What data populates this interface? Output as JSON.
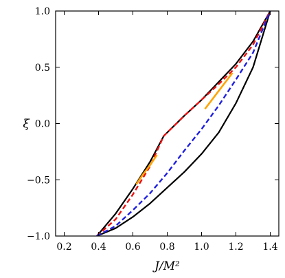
{
  "chart_data": {
    "type": "line",
    "title": "",
    "xlabel": "J/M²",
    "ylabel": "ξ",
    "xlim": [
      0.15,
      1.45
    ],
    "ylim": [
      -1.0,
      1.0
    ],
    "xticks": [
      0.2,
      0.4,
      0.6,
      0.8,
      1.0,
      1.2,
      1.4
    ],
    "yticks": [
      -1.0,
      -0.5,
      0.0,
      0.5,
      1.0
    ],
    "xtick_labels": [
      "0.2",
      "0.4",
      "0.6",
      "0.8",
      "1.0",
      "1.2",
      "1.4"
    ],
    "ytick_labels": [
      "−1.0",
      "−0.5",
      "0.0",
      "0.5",
      "1.0"
    ],
    "grid": false,
    "legend": "none",
    "series": [
      {
        "color": "#000000",
        "dash": "solid",
        "x": [
          0.39,
          0.5,
          0.6,
          0.7,
          0.78
        ],
        "y": [
          -1.0,
          -0.8,
          -0.58,
          -0.34,
          -0.11
        ]
      },
      {
        "color": "#000000",
        "dash": "solid",
        "x": [
          0.78,
          0.9,
          1.0,
          1.1,
          1.2,
          1.3,
          1.4
        ],
        "y": [
          -0.11,
          0.07,
          0.21,
          0.37,
          0.53,
          0.73,
          1.0
        ]
      },
      {
        "color": "#000000",
        "dash": "solid",
        "x": [
          0.39,
          0.5,
          0.6,
          0.7,
          0.8,
          0.9,
          1.0,
          1.1,
          1.2,
          1.3,
          1.4
        ],
        "y": [
          -1.0,
          -0.93,
          -0.83,
          -0.71,
          -0.57,
          -0.43,
          -0.27,
          -0.08,
          0.18,
          0.5,
          1.0
        ]
      },
      {
        "color": "#ee1111",
        "dash": "dashed",
        "x": [
          0.39,
          0.5,
          0.6,
          0.7,
          0.78,
          0.9,
          1.0,
          1.1,
          1.2,
          1.3,
          1.4
        ],
        "y": [
          -1.0,
          -0.85,
          -0.63,
          -0.38,
          -0.11,
          0.07,
          0.21,
          0.35,
          0.5,
          0.7,
          1.0
        ]
      },
      {
        "color": "#1f1fe0",
        "dash": "dashed",
        "x": [
          0.39,
          0.5,
          0.6,
          0.7,
          0.8,
          0.9,
          1.0,
          1.1,
          1.2,
          1.3,
          1.4
        ],
        "y": [
          -1.0,
          -0.91,
          -0.77,
          -0.62,
          -0.44,
          -0.24,
          -0.05,
          0.16,
          0.39,
          0.63,
          1.0
        ]
      },
      {
        "color": "#ffa500",
        "dash": "solid",
        "x": [
          0.62,
          0.66,
          0.7,
          0.74
        ],
        "y": [
          -0.54,
          -0.45,
          -0.37,
          -0.28
        ]
      },
      {
        "color": "#ffa500",
        "dash": "solid",
        "x": [
          1.02,
          1.06,
          1.1,
          1.14,
          1.18
        ],
        "y": [
          0.13,
          0.21,
          0.29,
          0.37,
          0.45
        ]
      }
    ]
  }
}
